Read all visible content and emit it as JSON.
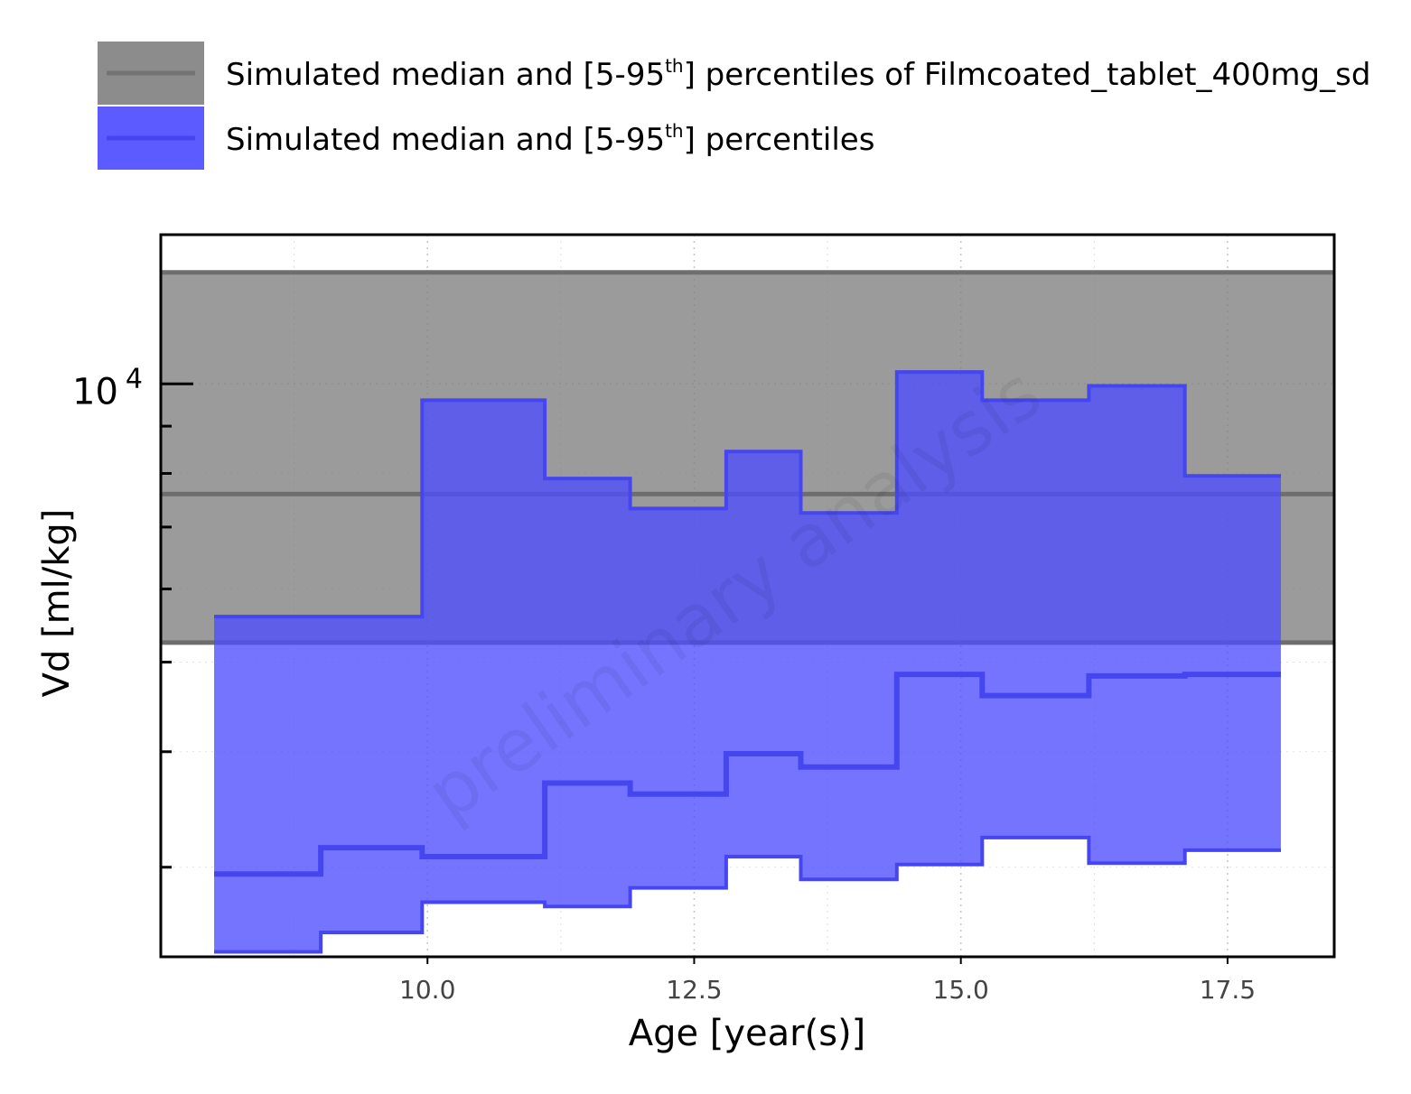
{
  "chart_data": {
    "type": "area",
    "xlabel": "Age [year(s)]",
    "ylabel": "Vd [ml/kg]",
    "y_scale": "log",
    "xlim": [
      7.5,
      18.5
    ],
    "ylim": [
      2400,
      14500
    ],
    "x_ticks": [
      10.0,
      12.5,
      15.0,
      17.5
    ],
    "x_tick_labels": [
      "10.0",
      "12.5",
      "15.0",
      "17.5"
    ],
    "y_major_ticks": [
      10000
    ],
    "y_major_tick_label": "10",
    "y_major_tick_exponent": "4",
    "y_minor_ticks": [
      3000,
      4000,
      5000,
      6000,
      7000,
      8000,
      9000
    ],
    "grid": true,
    "legend_position": "top",
    "watermark": "preliminary analysis",
    "legend": [
      {
        "label_pre": "Simulated median and [5-95",
        "label_sup": "th",
        "label_post": "] percentiles of Filmcoated_tablet_400mg_sd",
        "color": "#7f7f7f"
      },
      {
        "label_pre": "Simulated median and [5-95",
        "label_sup": "th",
        "label_post": "] percentiles",
        "color": "#5050ff"
      }
    ],
    "series": [
      {
        "name": "Simulated median and [5-95th] percentiles of Filmcoated_tablet_400mg_sd",
        "kind": "reference_band",
        "color": "#7f7f7f",
        "x_range": [
          7.5,
          18.5
        ],
        "median": 7600,
        "p5": 5250,
        "p95": 13200
      },
      {
        "name": "Simulated median and [5-95th] percentiles",
        "kind": "step_band",
        "color": "#5050ff",
        "bin_edges": [
          8.0,
          9.0,
          9.95,
          11.1,
          11.9,
          12.8,
          13.5,
          14.4,
          15.2,
          16.2,
          17.1,
          18.0
        ],
        "median": [
          2950,
          3150,
          3080,
          3700,
          3600,
          3980,
          3850,
          4850,
          4600,
          4830,
          4850
        ],
        "p5": [
          2430,
          2550,
          2750,
          2720,
          2850,
          3080,
          2910,
          3020,
          3230,
          3030,
          3130
        ],
        "p95": [
          5600,
          5600,
          9600,
          7900,
          7330,
          8450,
          7250,
          10300,
          9600,
          9950,
          7950
        ]
      }
    ]
  }
}
